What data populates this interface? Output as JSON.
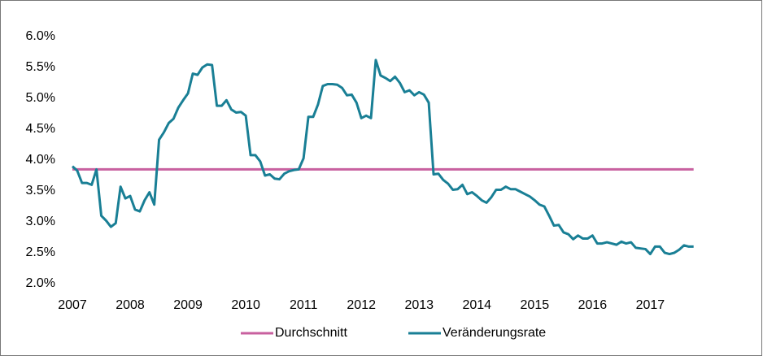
{
  "chart_data": {
    "type": "line",
    "categories": [
      "2007",
      null,
      null,
      null,
      null,
      null,
      null,
      null,
      null,
      null,
      null,
      null,
      "2008",
      null,
      null,
      null,
      null,
      null,
      null,
      null,
      null,
      null,
      null,
      null,
      "2009",
      null,
      null,
      null,
      null,
      null,
      null,
      null,
      null,
      null,
      null,
      null,
      "2010",
      null,
      null,
      null,
      null,
      null,
      null,
      null,
      null,
      null,
      null,
      null,
      "2011",
      null,
      null,
      null,
      null,
      null,
      null,
      null,
      null,
      null,
      null,
      null,
      "2012",
      null,
      null,
      null,
      null,
      null,
      null,
      null,
      null,
      null,
      null,
      null,
      "2013",
      null,
      null,
      null,
      null,
      null,
      null,
      null,
      null,
      null,
      null,
      null,
      "2014",
      null,
      null,
      null,
      null,
      null,
      null,
      null,
      null,
      null,
      null,
      null,
      "2015",
      null,
      null,
      null,
      null,
      null,
      null,
      null,
      null,
      null,
      null,
      null,
      "2016",
      null,
      null,
      null,
      null,
      null,
      null,
      null,
      null,
      null,
      null,
      null,
      "2017",
      null,
      null,
      null,
      null,
      null,
      null,
      null,
      null,
      null
    ],
    "series": [
      {
        "name": "Durchschnitt",
        "color": "#c8609f",
        "values": [
          3.85,
          3.85,
          3.85,
          3.85,
          3.85,
          3.85,
          3.85,
          3.85,
          3.85,
          3.85,
          3.85,
          3.85,
          3.85,
          3.85,
          3.85,
          3.85,
          3.85,
          3.85,
          3.85,
          3.85,
          3.85,
          3.85,
          3.85,
          3.85,
          3.85,
          3.85,
          3.85,
          3.85,
          3.85,
          3.85,
          3.85,
          3.85,
          3.85,
          3.85,
          3.85,
          3.85,
          3.85,
          3.85,
          3.85,
          3.85,
          3.85,
          3.85,
          3.85,
          3.85,
          3.85,
          3.85,
          3.85,
          3.85,
          3.85,
          3.85,
          3.85,
          3.85,
          3.85,
          3.85,
          3.85,
          3.85,
          3.85,
          3.85,
          3.85,
          3.85,
          3.85,
          3.85,
          3.85,
          3.85,
          3.85,
          3.85,
          3.85,
          3.85,
          3.85,
          3.85,
          3.85,
          3.85,
          3.85,
          3.85,
          3.85,
          3.85,
          3.85,
          3.85,
          3.85,
          3.85,
          3.85,
          3.85,
          3.85,
          3.85,
          3.85,
          3.85,
          3.85,
          3.85,
          3.85,
          3.85,
          3.85,
          3.85,
          3.85,
          3.85,
          3.85,
          3.85,
          3.85,
          3.85,
          3.85,
          3.85,
          3.85,
          3.85,
          3.85,
          3.85,
          3.85,
          3.85,
          3.85,
          3.85,
          3.85,
          3.85,
          3.85,
          3.85,
          3.85,
          3.85,
          3.85,
          3.85,
          3.85,
          3.85,
          3.85,
          3.85,
          3.85,
          3.85,
          3.85,
          3.85,
          3.85,
          3.85,
          3.85,
          3.85,
          3.85,
          3.85
        ]
      },
      {
        "name": "Veränderungsrate",
        "color": "#197f95",
        "values": [
          3.9,
          3.83,
          3.63,
          3.63,
          3.6,
          3.85,
          3.1,
          3.02,
          2.92,
          2.98,
          3.57,
          3.38,
          3.42,
          3.2,
          3.17,
          3.35,
          3.48,
          3.28,
          4.33,
          4.45,
          4.6,
          4.67,
          4.85,
          4.97,
          5.08,
          5.4,
          5.38,
          5.5,
          5.55,
          5.54,
          4.88,
          4.88,
          4.97,
          4.82,
          4.77,
          4.78,
          4.72,
          4.08,
          4.08,
          3.98,
          3.75,
          3.77,
          3.7,
          3.69,
          3.78,
          3.82,
          3.84,
          3.85,
          4.03,
          4.7,
          4.7,
          4.9,
          5.2,
          5.23,
          5.23,
          5.22,
          5.17,
          5.05,
          5.06,
          4.93,
          4.68,
          4.72,
          4.68,
          5.62,
          5.37,
          5.33,
          5.28,
          5.35,
          5.25,
          5.1,
          5.13,
          5.05,
          5.1,
          5.06,
          4.93,
          3.77,
          3.78,
          3.68,
          3.62,
          3.52,
          3.53,
          3.6,
          3.45,
          3.48,
          3.42,
          3.35,
          3.31,
          3.4,
          3.52,
          3.52,
          3.57,
          3.53,
          3.53,
          3.49,
          3.45,
          3.41,
          3.35,
          3.28,
          3.25,
          3.1,
          2.94,
          2.95,
          2.83,
          2.8,
          2.72,
          2.78,
          2.73,
          2.73,
          2.78,
          2.65,
          2.65,
          2.67,
          2.65,
          2.63,
          2.68,
          2.65,
          2.67,
          2.58,
          2.57,
          2.56,
          2.48,
          2.6,
          2.6,
          2.5,
          2.48,
          2.5,
          2.55,
          2.62,
          2.6,
          2.6
        ]
      }
    ],
    "ylim": [
      2.0,
      6.0
    ],
    "yticks": [
      {
        "value": 2.0,
        "label": "2.0%"
      },
      {
        "value": 2.5,
        "label": "2.5%"
      },
      {
        "value": 3.0,
        "label": "3.0%"
      },
      {
        "value": 3.5,
        "label": "3.5%"
      },
      {
        "value": 4.0,
        "label": "4.0%"
      },
      {
        "value": 4.5,
        "label": "4.5%"
      },
      {
        "value": 5.0,
        "label": "5.0%"
      },
      {
        "value": 5.5,
        "label": "5.5%"
      },
      {
        "value": 6.0,
        "label": "6.0%"
      }
    ],
    "legend": "bottom"
  }
}
